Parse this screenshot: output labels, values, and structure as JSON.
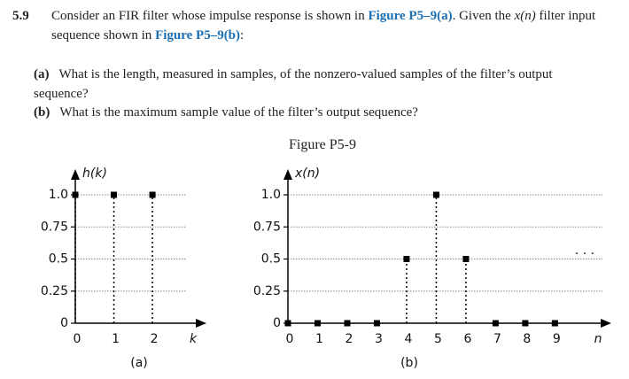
{
  "problem": {
    "number": "5.9",
    "intro_1": "Consider an FIR filter whose impulse response is shown in ",
    "link_a": "Figure P5–9(a)",
    "intro_2": ". Given the ",
    "var_x": "x(n)",
    "intro_3": " filter input sequence shown in ",
    "link_b": "Figure P5–9(b)",
    "intro_4": ":",
    "parts": [
      {
        "label": "(a)",
        "text": "What is the length, measured in samples, of the nonzero-valued samples of the filter’s output sequence?"
      },
      {
        "label": "(b)",
        "text": "What is the maximum sample value of the filter’s output sequence?"
      }
    ]
  },
  "figure_title": "Figure P5-9",
  "chart_data": [
    {
      "type": "stem",
      "ylabel": "h(k)",
      "xlabel": "k",
      "caption": "(a)",
      "x": [
        0,
        1,
        2
      ],
      "values": [
        1,
        1,
        1
      ],
      "xlim": [
        0,
        3.4
      ],
      "ylim": [
        0,
        1.2
      ],
      "xticks": [
        0,
        1,
        2
      ],
      "yticks": [
        0,
        0.25,
        0.5,
        0.75,
        {
          "value": 1,
          "label": "1.0"
        }
      ],
      "grid": true,
      "color": "#000000"
    },
    {
      "type": "stem",
      "ylabel": "x(n)",
      "xlabel": "n",
      "caption": "(b)",
      "annotation": ". . .",
      "x": [
        0,
        1,
        2,
        3,
        4,
        5,
        6,
        7,
        8,
        9
      ],
      "values": [
        0,
        0,
        0,
        0,
        0.5,
        1,
        0.5,
        0,
        0,
        0
      ],
      "xlim": [
        0,
        10.9
      ],
      "ylim": [
        0,
        1.2
      ],
      "xticks": [
        0,
        1,
        2,
        3,
        4,
        5,
        6,
        7,
        8,
        9
      ],
      "yticks": [
        0,
        0.25,
        0.5,
        0.75,
        {
          "value": 1,
          "label": "1.0"
        }
      ],
      "grid": true,
      "color": "#000000"
    }
  ]
}
